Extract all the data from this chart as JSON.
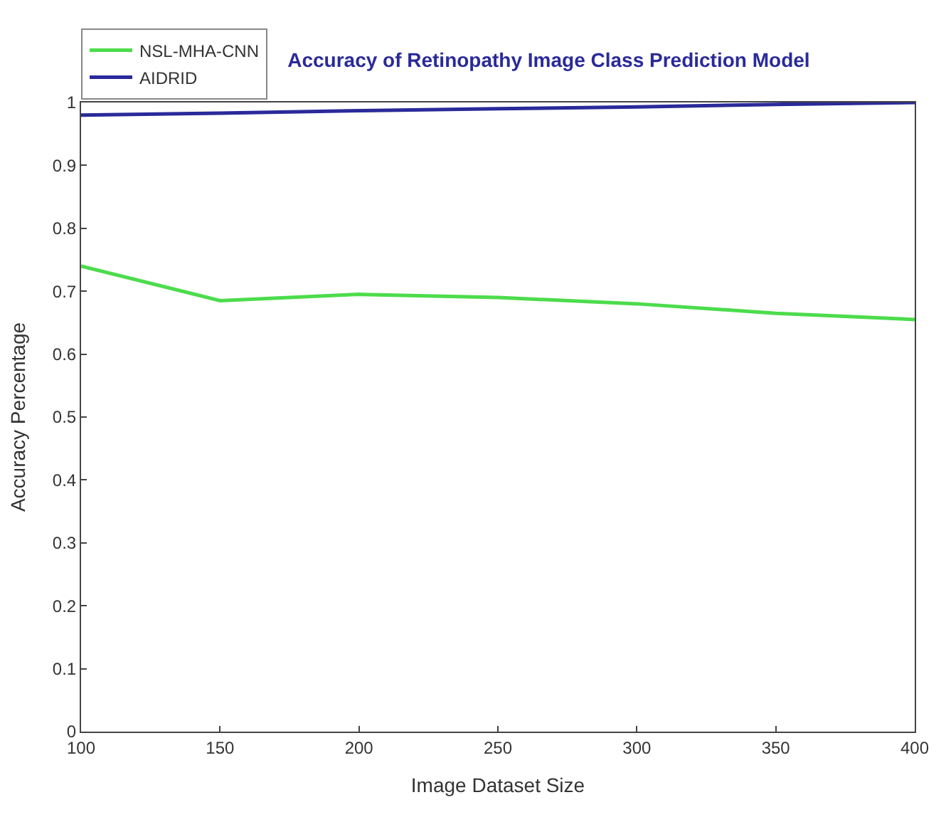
{
  "chart_data": {
    "type": "line",
    "title": "Accuracy of Retinopathy Image Class Prediction Model",
    "xlabel": "Image Dataset Size",
    "ylabel": "Accuracy Percentage",
    "x": [
      100,
      150,
      200,
      250,
      300,
      350,
      400
    ],
    "series": [
      {
        "name": "NSL-MHA-CNN",
        "color": "#4cdc4c",
        "values": [
          0.74,
          0.685,
          0.695,
          0.69,
          0.68,
          0.665,
          0.655
        ]
      },
      {
        "name": "AIDRID",
        "color": "#2a2a9a",
        "values": [
          0.98,
          0.983,
          0.987,
          0.99,
          0.993,
          0.997,
          1.0
        ]
      }
    ],
    "xlim": [
      100,
      400
    ],
    "xticks": [
      100,
      150,
      200,
      250,
      300,
      350,
      400
    ],
    "ylim": [
      0,
      1
    ],
    "yticks": [
      0,
      0.1,
      0.2,
      0.3,
      0.4,
      0.5,
      0.6,
      0.7,
      0.8,
      0.9,
      1
    ],
    "legend": "top left",
    "marker": "none",
    "line_style": "solid"
  }
}
